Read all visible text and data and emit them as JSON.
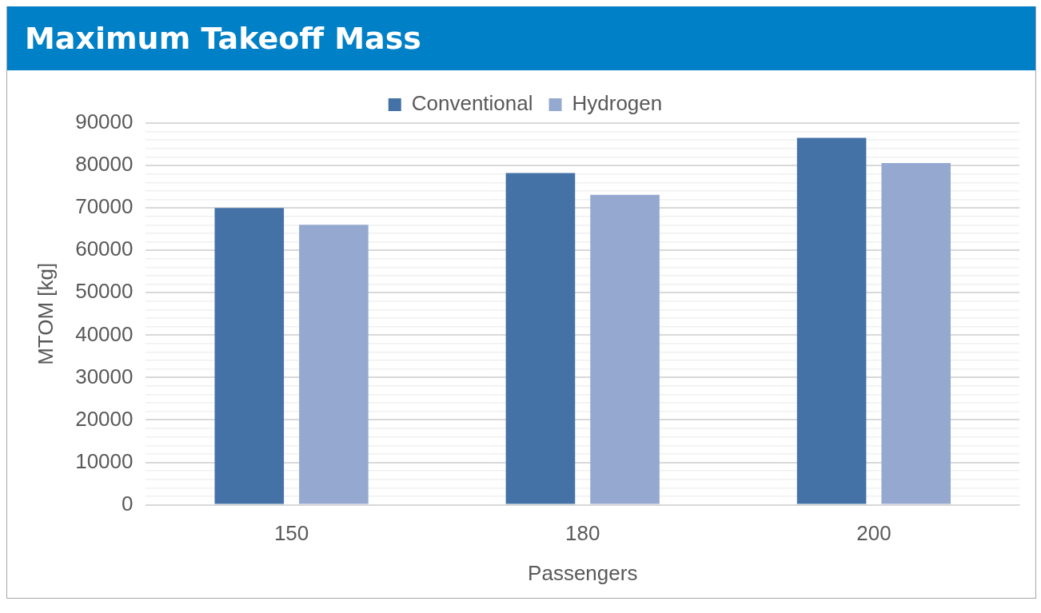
{
  "chart_data": {
    "type": "bar",
    "title": "Maximum Takeoff Mass",
    "xlabel": "Passengers",
    "ylabel": "MTOM [kg]",
    "categories": [
      "150",
      "180",
      "200"
    ],
    "series": [
      {
        "name": "Conventional",
        "color": "#4472a6",
        "values": [
          70000,
          78200,
          86500
        ]
      },
      {
        "name": "Hydrogen",
        "color": "#95a9d0",
        "values": [
          66000,
          73100,
          80600
        ]
      }
    ],
    "ylim": [
      0,
      90000
    ],
    "yticks": [
      0,
      {
        "value": 2000,
        "label": null
      },
      {
        "value": 4000,
        "label": null
      },
      {
        "value": 6000,
        "label": null
      },
      {
        "value": 8000,
        "label": null
      },
      10000,
      {
        "value": 12000,
        "label": null
      },
      {
        "value": 14000,
        "label": null
      },
      {
        "value": 16000,
        "label": null
      },
      {
        "value": 18000,
        "label": null
      },
      20000,
      {
        "value": 22000,
        "label": null
      },
      {
        "value": 24000,
        "label": null
      },
      {
        "value": 26000,
        "label": null
      },
      {
        "value": 28000,
        "label": null
      },
      30000,
      {
        "value": 32000,
        "label": null
      },
      {
        "value": 34000,
        "label": null
      },
      {
        "value": 36000,
        "label": null
      },
      {
        "value": 38000,
        "label": null
      },
      40000,
      {
        "value": 42000,
        "label": null
      },
      {
        "value": 44000,
        "label": null
      },
      {
        "value": 46000,
        "label": null
      },
      {
        "value": 48000,
        "label": null
      },
      50000,
      {
        "value": 52000,
        "label": null
      },
      {
        "value": 54000,
        "label": null
      },
      {
        "value": 56000,
        "label": null
      },
      {
        "value": 58000,
        "label": null
      },
      60000,
      {
        "value": 62000,
        "label": null
      },
      {
        "value": 64000,
        "label": null
      },
      {
        "value": 66000,
        "label": null
      },
      {
        "value": 68000,
        "label": null
      },
      70000,
      {
        "value": 72000,
        "label": null
      },
      {
        "value": 74000,
        "label": null
      },
      {
        "value": 76000,
        "label": null
      },
      {
        "value": 78000,
        "label": null
      },
      80000,
      {
        "value": 82000,
        "label": null
      },
      {
        "value": 84000,
        "label": null
      },
      {
        "value": 86000,
        "label": null
      },
      {
        "value": 88000,
        "label": null
      },
      90000
    ],
    "grid": "y",
    "legend": "top"
  }
}
